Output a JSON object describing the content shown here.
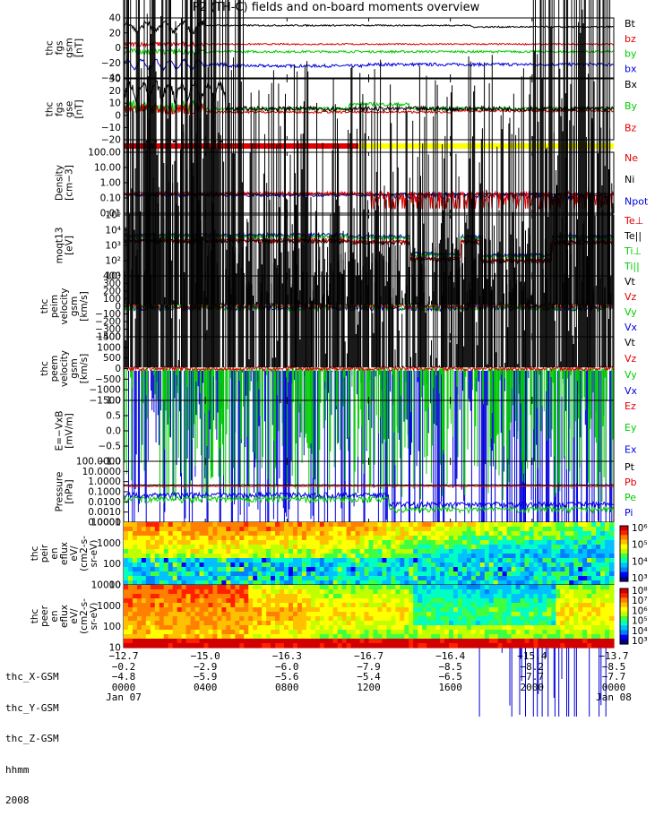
{
  "title": "P2 (TH-C) fields and on-board moments overview",
  "colors": {
    "black": "#000000",
    "red": "#e00000",
    "green": "#00cc00",
    "blue": "#0000dd",
    "yellow": "#ffff00"
  },
  "panels": [
    {
      "id": "fgs_gsm",
      "ylabel": [
        "thc",
        "fgs",
        "gsm",
        "[nT]"
      ],
      "ticks": [
        "40",
        "20",
        "0",
        "−20",
        "−40"
      ],
      "legend": [
        {
          "t": "Bt",
          "c": "black"
        },
        {
          "t": "bz",
          "c": "red"
        },
        {
          "t": "by",
          "c": "green"
        },
        {
          "t": "bx",
          "c": "blue"
        }
      ]
    },
    {
      "id": "fgs_gse",
      "ylabel": [
        "thc",
        "fgs",
        "gse",
        "[nT]"
      ],
      "ticks": [
        "30",
        "20",
        "10",
        "0",
        "−10",
        "−20"
      ],
      "legend": [
        {
          "t": "Bx",
          "c": "black"
        },
        {
          "t": "By",
          "c": "green"
        },
        {
          "t": "Bz",
          "c": "red"
        }
      ]
    },
    {
      "id": "density",
      "ylabel": [
        "Density",
        "[cm−3]"
      ],
      "ticks": [
        "100.00",
        "10.00",
        "1.00",
        "0.10",
        "0.01"
      ],
      "legend": [
        {
          "t": "Ne",
          "c": "red"
        },
        {
          "t": "Ni",
          "c": "black"
        },
        {
          "t": "Npot",
          "c": "blue"
        }
      ]
    },
    {
      "id": "temp",
      "ylabel": [
        "moqt13",
        "[eV]"
      ],
      "ticks": [
        "10⁵",
        "10⁴",
        "10³",
        "10²",
        "10¹"
      ],
      "legend": [
        {
          "t": "Te⊥",
          "c": "red"
        },
        {
          "t": "Te||",
          "c": "black"
        },
        {
          "t": "Ti⊥",
          "c": "green"
        },
        {
          "t": "Ti||",
          "c": "green"
        }
      ]
    },
    {
      "id": "peim_v",
      "ylabel": [
        "thc",
        "peim",
        "velocity",
        "gsm",
        "[km/s]"
      ],
      "ticks": [
        "400",
        "300",
        "200",
        "100",
        "0",
        "−100",
        "−200",
        "−300",
        "−400"
      ],
      "legend": [
        {
          "t": "Vt",
          "c": "black"
        },
        {
          "t": "Vz",
          "c": "red"
        },
        {
          "t": "Vy",
          "c": "green"
        },
        {
          "t": "Vx",
          "c": "blue"
        }
      ]
    },
    {
      "id": "peem_v",
      "ylabel": [
        "thc",
        "peem",
        "velocity",
        "gsm",
        "[km/s]"
      ],
      "ticks": [
        "1500",
        "1000",
        "500",
        "0",
        "−500",
        "−1000",
        "−1500"
      ],
      "legend": [
        {
          "t": "Vt",
          "c": "black"
        },
        {
          "t": "Vz",
          "c": "red"
        },
        {
          "t": "Vy",
          "c": "green"
        },
        {
          "t": "Vx",
          "c": "blue"
        }
      ]
    },
    {
      "id": "efield",
      "ylabel": [
        "E=−VxB",
        "[mV/m]"
      ],
      "ticks": [
        "1.0",
        "0.5",
        "0.0",
        "−0.5",
        "−1.0"
      ],
      "legend": [
        {
          "t": "Ez",
          "c": "red"
        },
        {
          "t": "Ey",
          "c": "green"
        },
        {
          "t": "Ex",
          "c": "blue"
        }
      ]
    },
    {
      "id": "pressure",
      "ylabel": [
        "Pressure",
        "[nPa]"
      ],
      "ticks": [
        "100.0000",
        "10.0000",
        "1.0000",
        "0.1000",
        "0.0100",
        "0.0010",
        "0.0001"
      ],
      "legend": [
        {
          "t": "Pt",
          "c": "black"
        },
        {
          "t": "Pb",
          "c": "red"
        },
        {
          "t": "Pe",
          "c": "green"
        },
        {
          "t": "Pi",
          "c": "blue"
        }
      ]
    },
    {
      "id": "peir",
      "ylabel": [
        "thc",
        "peir",
        "en",
        "eflux",
        "eV/",
        "(cm2-s-",
        "sr-eV)"
      ],
      "ticks": [
        "10000",
        "1000",
        "100",
        "10"
      ],
      "colorbar": [
        "10⁶",
        "10⁵",
        "10⁴",
        "10³"
      ]
    },
    {
      "id": "peer",
      "ylabel": [
        "thc",
        "peer",
        "en",
        "eflux",
        "eV/",
        "(cm2-s-",
        "sr-eV)"
      ],
      "ticks": [
        "10000",
        "1000",
        "100",
        "10"
      ],
      "colorbar": [
        "10⁸",
        "10⁷",
        "10⁶",
        "10⁵",
        "10⁴",
        "10³"
      ]
    }
  ],
  "footer": {
    "row_labels": [
      "thc_X-GSM",
      "thc_Y-GSM",
      "thc_Z-GSM",
      "hhmm",
      "2008"
    ],
    "columns": [
      {
        "x": "−12.7",
        "y": "−0.2",
        "z": "−4.8",
        "t": "0000",
        "d": "Jan 07"
      },
      {
        "x": "−15.0",
        "y": "−2.9",
        "z": "−5.9",
        "t": "0400",
        "d": ""
      },
      {
        "x": "−16.3",
        "y": "−6.0",
        "z": "−5.6",
        "t": "0800",
        "d": ""
      },
      {
        "x": "−16.7",
        "y": "−7.9",
        "z": "−5.4",
        "t": "1200",
        "d": ""
      },
      {
        "x": "−16.4",
        "y": "−8.5",
        "z": "−6.5",
        "t": "1600",
        "d": ""
      },
      {
        "x": "−15.4",
        "y": "−8.2",
        "z": "−7.7",
        "t": "2000",
        "d": ""
      },
      {
        "x": "−13.7",
        "y": "−8.5",
        "z": "−7.7",
        "t": "0000",
        "d": "Jan 08"
      }
    ]
  },
  "chart_data": {
    "type": "line",
    "title": "P2 (TH-C) fields and on-board moments overview",
    "x_axis": "hhmm",
    "x_ticks": [
      "0000",
      "0400",
      "0800",
      "1200",
      "1600",
      "2000",
      "0000"
    ],
    "date_labels": [
      "Jan 07",
      "Jan 08"
    ],
    "mode_bar": [
      {
        "from": "0000",
        "to": "1150",
        "color": "red"
      },
      {
        "from": "1150",
        "to": "2400",
        "color": "yellow"
      }
    ],
    "series_summary": {
      "Bt_nT": {
        "x": [
          "0000",
          "0200",
          "0400",
          "0800",
          "1200",
          "1600",
          "2000",
          "2400"
        ],
        "y": [
          30,
          30,
          25,
          30,
          30,
          30,
          30,
          25
        ]
      },
      "bz_nT": {
        "x": [
          "0000",
          "0400",
          "0800",
          "1200",
          "1600",
          "2000",
          "2400"
        ],
        "y": [
          5,
          5,
          5,
          5,
          5,
          5,
          5
        ]
      },
      "by_nT": {
        "x": [
          "0000",
          "0400",
          "0800",
          "1200",
          "1600",
          "2000",
          "2400"
        ],
        "y": [
          -5,
          -5,
          -5,
          -5,
          -5,
          -5,
          -8
        ]
      },
      "bx_nT": {
        "x": [
          "0000",
          "0200",
          "0400",
          "0800",
          "1200",
          "1600",
          "2000",
          "2400"
        ],
        "y": [
          -20,
          -20,
          -20,
          -25,
          -25,
          -25,
          -25,
          -20
        ]
      },
      "density_cm3": {
        "x": [
          "0000",
          "0400",
          "0800",
          "1200",
          "1600",
          "2000",
          "2400"
        ],
        "y": [
          0.2,
          0.2,
          0.15,
          0.15,
          0.1,
          0.1,
          0.1
        ]
      },
      "temperature_eV": {
        "x": [
          "0000",
          "0400",
          "0800",
          "1200",
          "1600",
          "2000",
          "2400"
        ],
        "y": [
          2000,
          2500,
          2000,
          2000,
          100,
          100,
          2000
        ]
      }
    }
  }
}
